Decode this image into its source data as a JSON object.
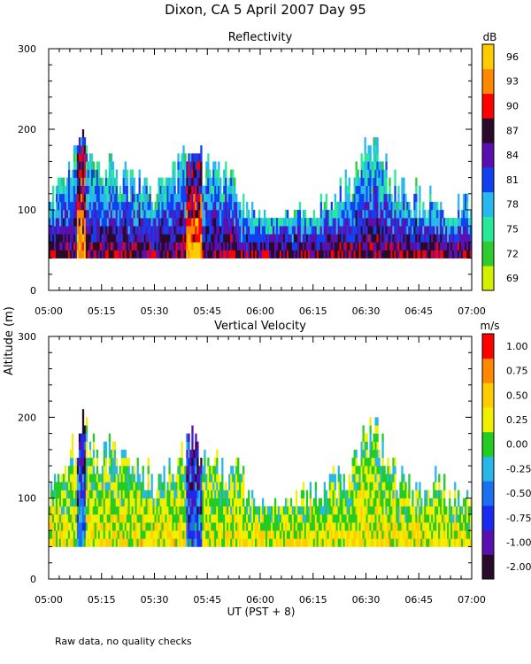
{
  "figure": {
    "title": "Dixon, CA   5 April 2007   Day   95",
    "shared_ylabel": "Altitude (m)",
    "xlabel": "UT   (PST + 8)",
    "footnote": "Raw data, no quality checks"
  },
  "colors": {
    "reflectivity_scale": [
      "#d4f000",
      "#2ecc2e",
      "#28e89a",
      "#28b8f0",
      "#1040f0",
      "#5a10b0",
      "#2a0a2a",
      "#ff0000",
      "#ff8800",
      "#ffcc00"
    ],
    "velocity_scale": [
      "#2a0a2a",
      "#5a10b0",
      "#1a2af0",
      "#1a70f0",
      "#28b8e8",
      "#22cc22",
      "#f0f000",
      "#ffcc00",
      "#ff8800",
      "#ff0000"
    ]
  },
  "chart_data": [
    {
      "type": "heatmap",
      "title": "Reflectivity",
      "ylabel": "Altitude (m)",
      "xlabel": "UT   (PST + 8)",
      "ylim": [
        0,
        300
      ],
      "yticks": [
        0,
        100,
        200,
        300
      ],
      "xlim": [
        "05:00",
        "07:00"
      ],
      "xticks": [
        "05:00",
        "05:15",
        "05:30",
        "05:45",
        "06:00",
        "06:15",
        "06:30",
        "06:45",
        "07:00"
      ],
      "colorbar": {
        "unit": "dB",
        "labels": [
          "69",
          "72",
          "75",
          "78",
          "81",
          "84",
          "87",
          "90",
          "93",
          "96"
        ]
      },
      "data_bottom": 40,
      "profile_tops": [
        {
          "time": "05:00",
          "top": 140
        },
        {
          "time": "05:04",
          "top": 160
        },
        {
          "time": "05:08",
          "top": 200
        },
        {
          "time": "05:09",
          "top": 220
        },
        {
          "time": "05:12",
          "top": 180
        },
        {
          "time": "05:18",
          "top": 180
        },
        {
          "time": "05:22",
          "top": 160
        },
        {
          "time": "05:26",
          "top": 160
        },
        {
          "time": "05:30",
          "top": 140
        },
        {
          "time": "05:35",
          "top": 160
        },
        {
          "time": "05:40",
          "top": 200
        },
        {
          "time": "05:43",
          "top": 180
        },
        {
          "time": "05:47",
          "top": 160
        },
        {
          "time": "05:52",
          "top": 160
        },
        {
          "time": "05:57",
          "top": 120
        },
        {
          "time": "06:00",
          "top": 100
        },
        {
          "time": "06:06",
          "top": 100
        },
        {
          "time": "06:10",
          "top": 120
        },
        {
          "time": "06:15",
          "top": 120
        },
        {
          "time": "06:20",
          "top": 140
        },
        {
          "time": "06:25",
          "top": 160
        },
        {
          "time": "06:30",
          "top": 200
        },
        {
          "time": "06:33",
          "top": 200
        },
        {
          "time": "06:37",
          "top": 160
        },
        {
          "time": "06:42",
          "top": 140
        },
        {
          "time": "06:48",
          "top": 140
        },
        {
          "time": "06:55",
          "top": 120
        },
        {
          "time": "07:00",
          "top": 120
        }
      ]
    },
    {
      "type": "heatmap",
      "title": "Vertical Velocity",
      "ylabel": "Altitude (m)",
      "xlabel": "UT   (PST + 8)",
      "ylim": [
        0,
        300
      ],
      "yticks": [
        0,
        100,
        200,
        300
      ],
      "xlim": [
        "05:00",
        "07:00"
      ],
      "xticks": [
        "05:00",
        "05:15",
        "05:30",
        "05:45",
        "06:00",
        "06:15",
        "06:30",
        "06:45",
        "07:00"
      ],
      "colorbar": {
        "unit": "m/s",
        "labels": [
          "-2.00",
          "-1.00",
          "-0.75",
          "-0.50",
          "-0.25",
          "0.00",
          "0.25",
          "0.50",
          "0.75",
          "1.00"
        ]
      },
      "data_bottom": 40,
      "profile_tops": [
        {
          "time": "05:00",
          "top": 140
        },
        {
          "time": "05:04",
          "top": 160
        },
        {
          "time": "05:08",
          "top": 200
        },
        {
          "time": "05:09",
          "top": 220
        },
        {
          "time": "05:12",
          "top": 180
        },
        {
          "time": "05:18",
          "top": 180
        },
        {
          "time": "05:22",
          "top": 160
        },
        {
          "time": "05:26",
          "top": 160
        },
        {
          "time": "05:30",
          "top": 140
        },
        {
          "time": "05:35",
          "top": 160
        },
        {
          "time": "05:40",
          "top": 200
        },
        {
          "time": "05:43",
          "top": 180
        },
        {
          "time": "05:47",
          "top": 160
        },
        {
          "time": "05:52",
          "top": 160
        },
        {
          "time": "05:57",
          "top": 120
        },
        {
          "time": "06:00",
          "top": 100
        },
        {
          "time": "06:06",
          "top": 100
        },
        {
          "time": "06:10",
          "top": 120
        },
        {
          "time": "06:15",
          "top": 120
        },
        {
          "time": "06:20",
          "top": 140
        },
        {
          "time": "06:25",
          "top": 160
        },
        {
          "time": "06:30",
          "top": 200
        },
        {
          "time": "06:33",
          "top": 200
        },
        {
          "time": "06:37",
          "top": 160
        },
        {
          "time": "06:42",
          "top": 140
        },
        {
          "time": "06:48",
          "top": 140
        },
        {
          "time": "06:55",
          "top": 120
        },
        {
          "time": "07:00",
          "top": 120
        }
      ]
    }
  ]
}
